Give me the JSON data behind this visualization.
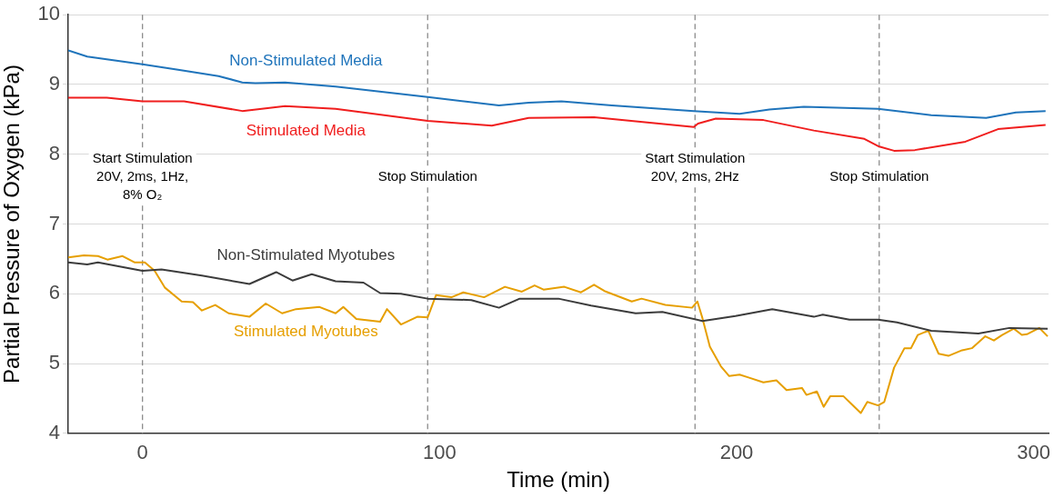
{
  "chart_data": {
    "type": "line",
    "xlabel": "Time (min)",
    "ylabel": "Partial Pressure of Oxygen (kPa)",
    "xlim": [
      -25,
      305
    ],
    "xticks": [
      0,
      100,
      200,
      300
    ],
    "ylim": [
      4,
      10
    ],
    "yticks": [
      4,
      5,
      6,
      7,
      8,
      9,
      10
    ],
    "grid": "y",
    "marker": "none",
    "line_style": "solid",
    "legend": false,
    "series": [
      {
        "name": "Non-Stimulated Media",
        "color": "#1f74bb",
        "x": [
          -25,
          -18.6,
          0,
          12,
          25.6,
          33.6,
          38,
          48,
          65,
          96,
          120,
          130,
          141,
          158,
          185.6,
          201,
          211,
          222.6,
          247.6,
          265.5,
          284,
          294,
          304
        ],
        "values": [
          9.49,
          9.4,
          9.29,
          9.21,
          9.12,
          9.03,
          9.02,
          9.03,
          8.97,
          8.82,
          8.7,
          8.74,
          8.76,
          8.7,
          8.62,
          8.58,
          8.64,
          8.68,
          8.65,
          8.56,
          8.52,
          8.6,
          8.62
        ]
      },
      {
        "name": "Stimulated Media",
        "color": "#f01e1e",
        "x": [
          -25,
          -12,
          0,
          14,
          33.6,
          48,
          65,
          96,
          117.6,
          130,
          152,
          185.6,
          187,
          193,
          209,
          226,
          243,
          248,
          253,
          260,
          277,
          288,
          304
        ],
        "values": [
          8.81,
          8.81,
          8.76,
          8.76,
          8.62,
          8.69,
          8.65,
          8.48,
          8.41,
          8.52,
          8.53,
          8.39,
          8.44,
          8.51,
          8.49,
          8.34,
          8.22,
          8.11,
          8.05,
          8.06,
          8.18,
          8.36,
          8.42
        ]
      },
      {
        "name": "Non-Stimulated Myotubes",
        "color": "#3c3c3c",
        "x": [
          -25,
          -18.6,
          -15,
          0,
          6.4,
          20,
          36,
          45,
          50.5,
          57,
          65,
          74.4,
          80,
          87,
          96,
          110.7,
          120,
          127,
          140,
          151,
          166,
          175,
          188.5,
          199.6,
          212,
          226,
          229,
          238,
          247.6,
          254,
          265.5,
          281.4,
          291.8,
          304.7
        ],
        "values": [
          6.45,
          6.42,
          6.45,
          6.33,
          6.35,
          6.26,
          6.14,
          6.31,
          6.19,
          6.28,
          6.18,
          6.16,
          6.01,
          6.0,
          5.93,
          5.91,
          5.8,
          5.93,
          5.93,
          5.83,
          5.72,
          5.74,
          5.61,
          5.68,
          5.78,
          5.67,
          5.7,
          5.63,
          5.63,
          5.59,
          5.47,
          5.43,
          5.51,
          5.5
        ]
      },
      {
        "name": "Stimulated Myotubes",
        "color": "#e69f00",
        "x": [
          -25,
          -19.7,
          -15,
          -11.8,
          -6.7,
          -2.7,
          0.8,
          4.1,
          7.5,
          13.2,
          17,
          20,
          24.5,
          29,
          36,
          41.5,
          47,
          51.7,
          59.6,
          65,
          67.6,
          72,
          80,
          82.3,
          87,
          92.5,
          96,
          98.8,
          104,
          108,
          115,
          122,
          127.7,
          132,
          135,
          142,
          147.6,
          152,
          155.5,
          164.7,
          168,
          176,
          185,
          186.8,
          188.5,
          191,
          194.7,
          197.5,
          201,
          204,
          209,
          213.4,
          216.8,
          222,
          223.5,
          227,
          229.3,
          231.5,
          236,
          238.4,
          241.8,
          244,
          247.6,
          249.7,
          253,
          256.5,
          258.7,
          261,
          264.5,
          268,
          271.3,
          275.9,
          279.2,
          283.7,
          286.6,
          289.4,
          293.3,
          296,
          297.7,
          301.9,
          304.7
        ],
        "values": [
          6.52,
          6.55,
          6.54,
          6.49,
          6.54,
          6.45,
          6.45,
          6.33,
          6.09,
          5.89,
          5.88,
          5.76,
          5.84,
          5.72,
          5.67,
          5.86,
          5.72,
          5.78,
          5.81,
          5.72,
          5.81,
          5.64,
          5.6,
          5.78,
          5.56,
          5.67,
          5.66,
          5.98,
          5.95,
          6.02,
          5.95,
          6.1,
          6.03,
          6.12,
          6.06,
          6.1,
          6.02,
          6.13,
          6.04,
          5.89,
          5.93,
          5.84,
          5.8,
          5.89,
          5.65,
          5.24,
          4.96,
          4.82,
          4.84,
          4.8,
          4.73,
          4.76,
          4.62,
          4.65,
          4.55,
          4.6,
          4.38,
          4.53,
          4.53,
          4.43,
          4.29,
          4.45,
          4.4,
          4.45,
          4.94,
          5.22,
          5.22,
          5.41,
          5.47,
          5.14,
          5.11,
          5.19,
          5.22,
          5.39,
          5.33,
          5.41,
          5.5,
          5.41,
          5.42,
          5.51,
          5.39
        ]
      }
    ],
    "ref_lines": [
      {
        "axis": "x",
        "value": 0,
        "label": "Start Stimulation\n20V, 2ms, 1Hz,\n8% O₂",
        "color": "#8c8c8c",
        "line_style": "dashed"
      },
      {
        "axis": "x",
        "value": 96,
        "label": "Stop Stimulation",
        "color": "#8c8c8c",
        "line_style": "dashed"
      },
      {
        "axis": "x",
        "value": 186,
        "label": "Start Stimulation\n20V, 2ms, 2Hz",
        "color": "#8c8c8c",
        "line_style": "dashed"
      },
      {
        "axis": "x",
        "value": 248,
        "label": "Stop Stimulation",
        "color": "#8c8c8c",
        "line_style": "dashed"
      }
    ]
  }
}
